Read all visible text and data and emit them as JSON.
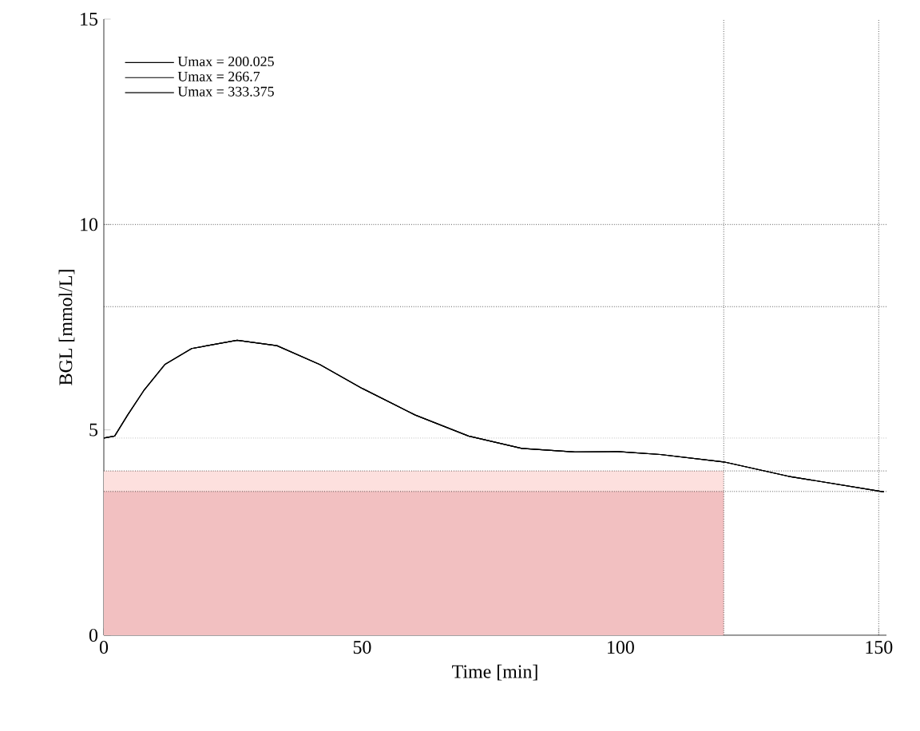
{
  "chart_data": {
    "type": "line",
    "xlabel": "Time [min]",
    "ylabel": "BGL [mmol/L]",
    "xlim": [
      0,
      151.5
    ],
    "ylim": [
      0,
      15
    ],
    "xticks": [
      0,
      50,
      100,
      150
    ],
    "yticks": [
      0,
      5,
      10,
      15
    ],
    "x": [
      0,
      2.1,
      4.6,
      7.7,
      11.8,
      17,
      25.8,
      33.5,
      41.8,
      50,
      60.3,
      70.6,
      80.9,
      91.2,
      99.5,
      107.7,
      120,
      132.5,
      151
    ],
    "series": [
      {
        "name": "Umax = 200.025",
        "color": "#000000",
        "values": [
          4.8,
          4.85,
          5.36,
          5.95,
          6.59,
          6.98,
          7.18,
          7.05,
          6.59,
          6.01,
          5.36,
          4.85,
          4.55,
          4.46,
          4.47,
          4.4,
          4.22,
          3.87,
          3.49
        ]
      },
      {
        "name": "Umax =  266.7",
        "color": "#000000",
        "values": [
          4.8,
          4.85,
          5.36,
          5.95,
          6.59,
          6.98,
          7.18,
          7.05,
          6.59,
          6.01,
          5.36,
          4.85,
          4.55,
          4.46,
          4.47,
          4.4,
          4.22,
          3.87,
          3.49
        ]
      },
      {
        "name": "Umax = 333.375",
        "color": "#000000",
        "values": [
          4.8,
          4.85,
          5.36,
          5.95,
          6.59,
          6.98,
          7.18,
          7.05,
          6.59,
          6.01,
          5.36,
          4.85,
          4.55,
          4.46,
          4.47,
          4.4,
          4.22,
          3.87,
          3.49
        ]
      },
      {
        "type": "area",
        "color": "#fde0de",
        "values": [
          4,
          4,
          4,
          4,
          4,
          4,
          4,
          4,
          4,
          4,
          4,
          4,
          4,
          4,
          4,
          4,
          4,
          null,
          null
        ]
      },
      {
        "type": "area",
        "color": "#f2c0c1",
        "values": [
          3.5,
          3.5,
          3.5,
          3.5,
          3.5,
          3.5,
          3.5,
          3.5,
          3.5,
          3.5,
          3.5,
          3.5,
          3.5,
          3.5,
          3.5,
          3.5,
          3.5,
          null,
          null
        ]
      }
    ],
    "ref_lines": [
      {
        "axis": "y",
        "value": 10,
        "color": "#000000",
        "line_style": "dotted"
      },
      {
        "axis": "y",
        "value": 8,
        "color": "#000000",
        "line_style": "dotted"
      },
      {
        "axis": "y",
        "value": 4.8,
        "color": "#999999",
        "line_style": "dotted"
      },
      {
        "axis": "y",
        "value": 4,
        "color": "#000000",
        "line_style": "dotted"
      },
      {
        "axis": "y",
        "value": 3.5,
        "color": "#000000",
        "line_style": "dotted"
      },
      {
        "axis": "x",
        "value": 120,
        "color": "#000000",
        "line_style": "dotted"
      },
      {
        "axis": "x",
        "value": 150,
        "color": "#000000",
        "line_style": "dotted"
      }
    ],
    "legend": "top left",
    "grid": false,
    "marker": "none",
    "line_style": "solid"
  }
}
